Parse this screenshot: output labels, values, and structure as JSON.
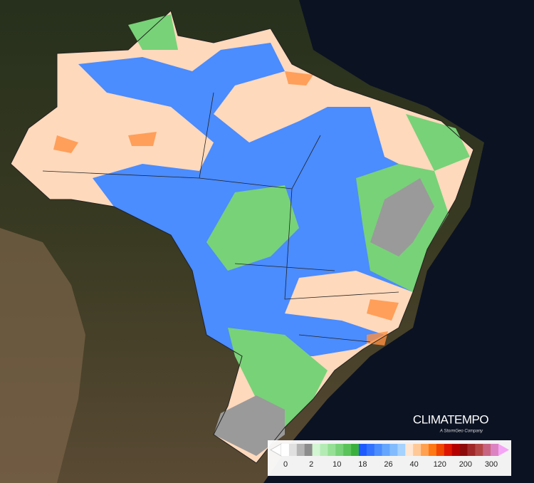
{
  "logo": {
    "name": "CLIMATEMPO",
    "tagline": "A StormGeo Company"
  },
  "legend": {
    "labels": [
      "0",
      "2",
      "10",
      "18",
      "26",
      "40",
      "120",
      "200",
      "300"
    ],
    "colors": [
      "#ffffff",
      "#e0e0e0",
      "#b4b4b4",
      "#8c8c8c",
      "#d2f5d2",
      "#b4ebb4",
      "#96e096",
      "#78d278",
      "#5ac35a",
      "#3cb03c",
      "#1e5aff",
      "#3272ff",
      "#4b8cff",
      "#64a5ff",
      "#82bcff",
      "#a5d2ff",
      "#ffe6d2",
      "#ffc896",
      "#ffa050",
      "#ff7814",
      "#f04600",
      "#dc1400",
      "#b40000",
      "#8c0a0a",
      "#a02828",
      "#b44646",
      "#c86482",
      "#dc82c3"
    ],
    "arrow_low": "#ffffff",
    "arrow_high": "#f5a5f5"
  }
}
